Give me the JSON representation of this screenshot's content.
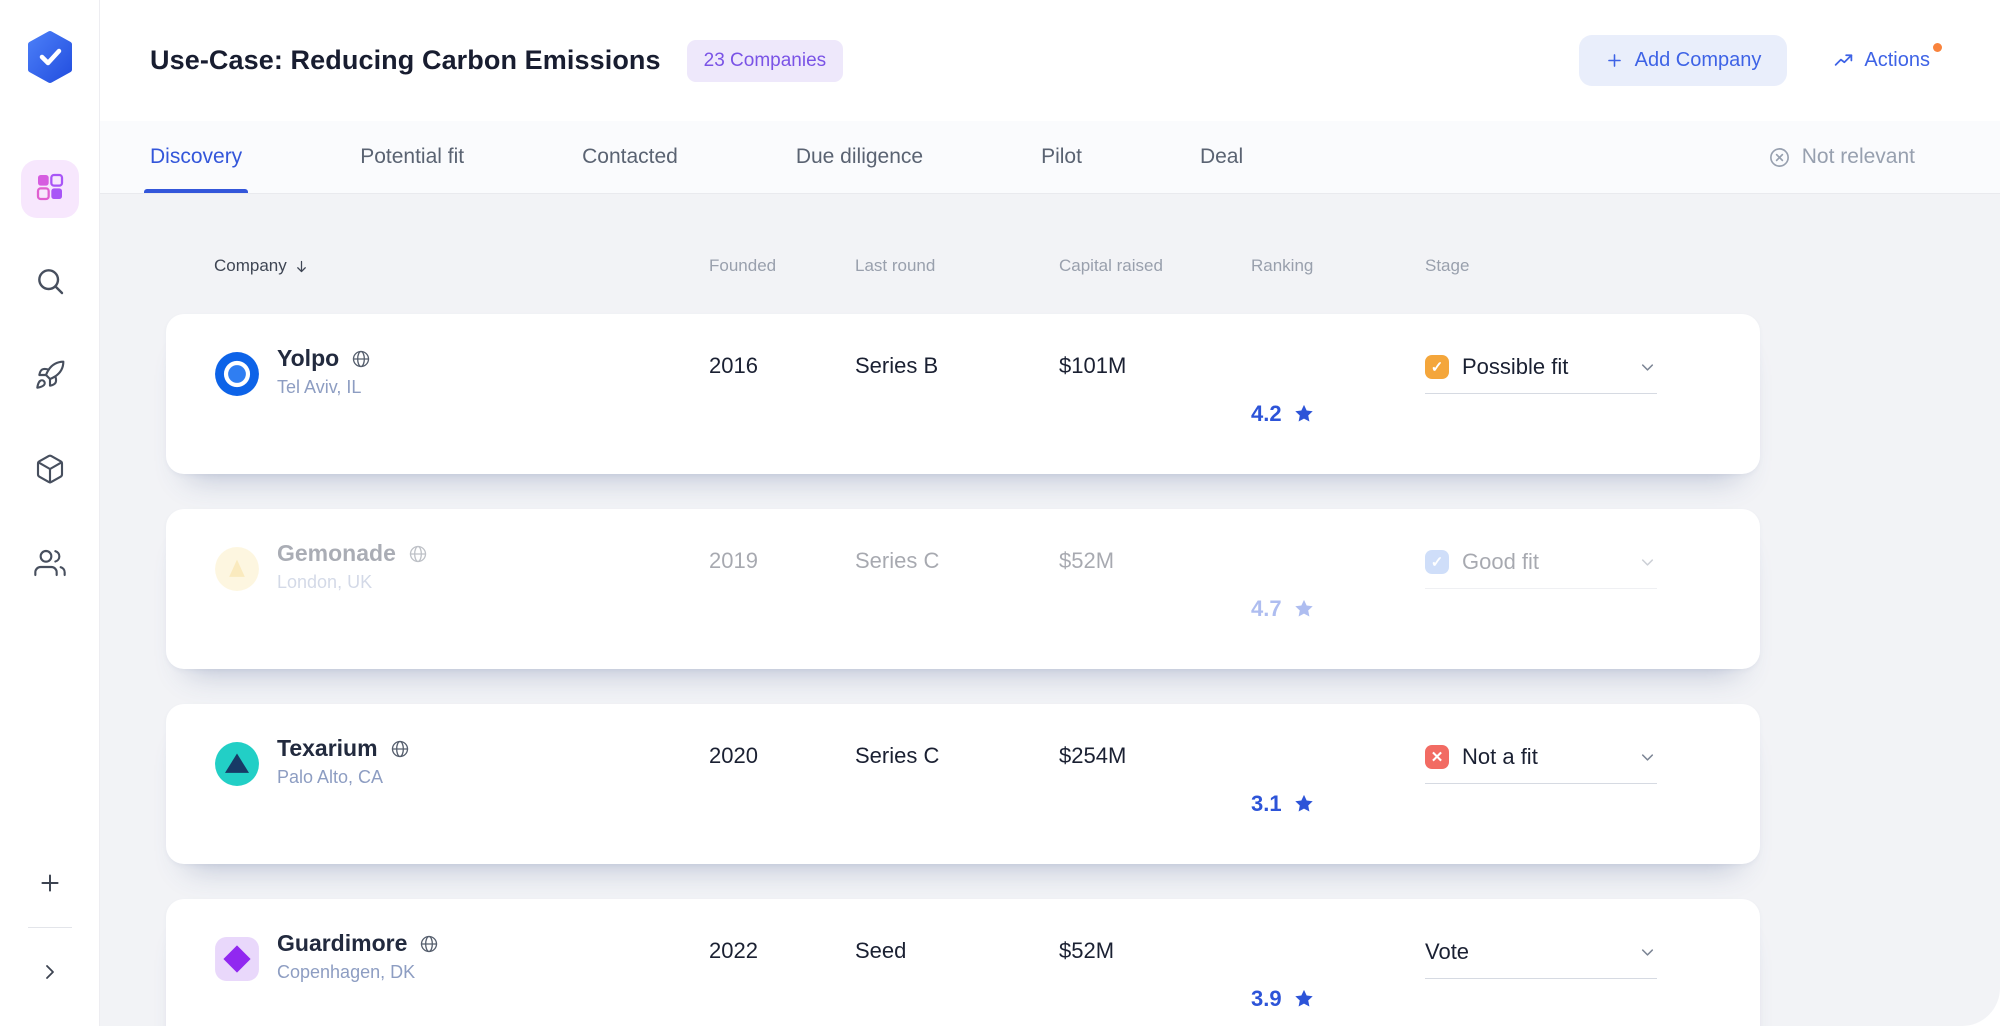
{
  "header": {
    "title": "Use-Case: Reducing Carbon Emissions",
    "companies_badge": "23 Companies",
    "add_company_label": "Add Company",
    "actions_label": "Actions"
  },
  "tabs": {
    "items": [
      {
        "label": "Discovery",
        "active": true
      },
      {
        "label": "Potential fit",
        "active": false
      },
      {
        "label": "Contacted",
        "active": false
      },
      {
        "label": "Due diligence",
        "active": false
      },
      {
        "label": "Pilot",
        "active": false
      },
      {
        "label": "Deal",
        "active": false
      }
    ],
    "not_relevant_label": "Not relevant"
  },
  "table": {
    "columns": [
      "Company",
      "Founded",
      "Last round",
      "Capital raised",
      "Ranking",
      "Stage"
    ],
    "rows": [
      {
        "name": "Yolpo",
        "location": "Tel Aviv, IL",
        "founded": "2016",
        "last_round": "Series B",
        "capital_raised": "$101M",
        "ranking": "4.2",
        "stage": "Possible fit",
        "stage_type": "possible",
        "logo_style": "blue-donut",
        "faded": false
      },
      {
        "name": "Gemonade",
        "location": "London, UK",
        "founded": "2019",
        "last_round": "Series C",
        "capital_raised": "$52M",
        "ranking": "4.7",
        "stage": "Good fit",
        "stage_type": "good",
        "logo_style": "yellow-circle",
        "faded": true
      },
      {
        "name": "Texarium",
        "location": "Palo Alto, CA",
        "founded": "2020",
        "last_round": "Series C",
        "capital_raised": "$254M",
        "ranking": "3.1",
        "stage": "Not a fit",
        "stage_type": "not",
        "logo_style": "teal-triangle",
        "faded": false
      },
      {
        "name": "Guardimore",
        "location": "Copenhagen, DK",
        "founded": "2022",
        "last_round": "Seed",
        "capital_raised": "$52M",
        "ranking": "3.9",
        "stage": "Vote",
        "stage_type": "vote",
        "logo_style": "purple-diamond",
        "faded": false
      }
    ]
  },
  "colors": {
    "accent_blue": "#3e63e6",
    "badge_purple": "#7a53e6",
    "stage_possible": "#f4a63b",
    "stage_good": "#82abf0",
    "stage_not": "#f26b63",
    "notification_dot": "#f9833c"
  }
}
